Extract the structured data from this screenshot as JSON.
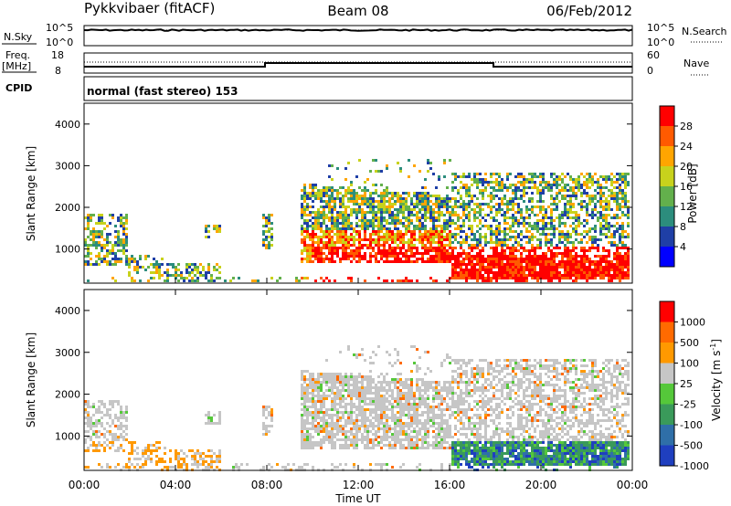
{
  "header": {
    "site": "Pykkvibaer (fitACF)",
    "beam": "Beam 08",
    "date": "06/Feb/2012"
  },
  "top_panels": {
    "nsky": {
      "label": "N.Sky",
      "ticks": [
        "10^5",
        "10^0"
      ],
      "right_label": "N.Search",
      "right_ticks": [
        "10^5",
        "10^0"
      ]
    },
    "freq": {
      "label_line1": "Freq.",
      "label_line2": "[MHz]",
      "ticks": [
        "18",
        "8"
      ],
      "right_label": "Nave",
      "right_ticks": [
        "60",
        "0"
      ]
    },
    "cpid": {
      "label": "CPID",
      "text": "normal (fast stereo) 153"
    }
  },
  "chart_data": [
    {
      "type": "heatmap",
      "name": "Power",
      "ylabel": "Slant Range [km]",
      "yticks": [
        "4000",
        "3000",
        "2000",
        "1000"
      ],
      "ylim": [
        180,
        4500
      ],
      "colorbar_label": "Power [dB]",
      "colorbar_ticks": [
        "28",
        "24",
        "20",
        "16",
        "12",
        "8",
        "4"
      ],
      "colors": [
        "#0000ff",
        "#1f3fa6",
        "#2c8d7d",
        "#63b04c",
        "#c8d21c",
        "#ffa500",
        "#ff5a00",
        "#ff0000"
      ]
    },
    {
      "type": "heatmap",
      "name": "Velocity",
      "ylabel": "Slant Range [km]",
      "yticks": [
        "4000",
        "3000",
        "2000",
        "1000"
      ],
      "ylim": [
        180,
        4500
      ],
      "colorbar_label": "Velocity [m s-1]",
      "colorbar_ticks": [
        "1000",
        "500",
        "100",
        "25",
        "-25",
        "-100",
        "-500",
        "-1000"
      ],
      "colors": [
        "#1f3fbf",
        "#2f6fa8",
        "#3a9a5a",
        "#55c83a",
        "#c6c6c6",
        "#ff9900",
        "#ff6a00",
        "#ff0000"
      ]
    }
  ],
  "xaxis": {
    "label": "Time UT",
    "ticks": [
      "00:00",
      "04:00",
      "08:00",
      "12:00",
      "16:00",
      "20:00",
      "00:00"
    ]
  }
}
